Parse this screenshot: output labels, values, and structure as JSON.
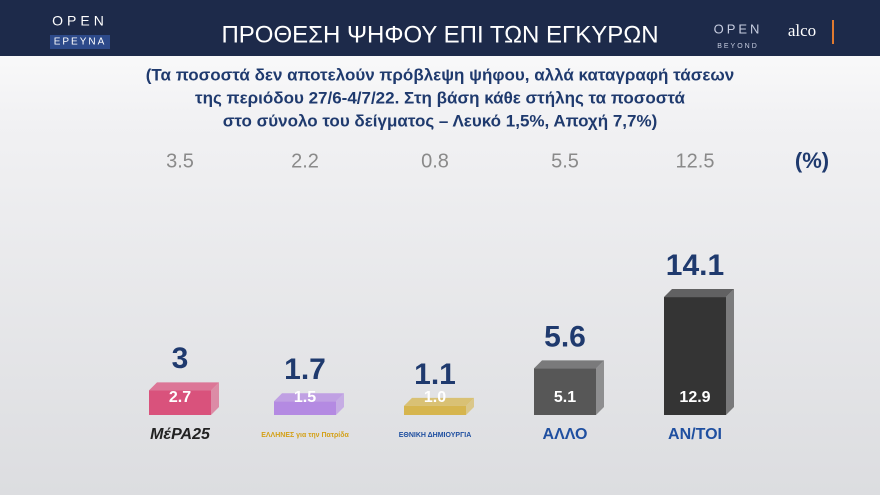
{
  "branding": {
    "left_logo": "OPEN",
    "left_logo_sub": "ΕΡΕΥΝΑ",
    "right_logo": "OPEN",
    "right_logo_sub": "BEYOND",
    "partner": "alco"
  },
  "chart_data": {
    "type": "bar",
    "title": "ΠΡΟΘΕΣΗ ΨΗΦΟΥ ΕΠΙ ΤΩΝ ΕΓΚΥΡΩΝ",
    "subtitle": [
      "(Τα ποσοστά δεν αποτελούν πρόβλεψη ψήφου, αλλά καταγραφή τάσεων",
      "της περιόδου 27/6-4/7/22. Στη βάση κάθε στήλης τα ποσοστά",
      "στο σύνολο του δείγματος – Λευκό 1,5%, Αποχή 7,7%)"
    ],
    "unit_label": "(%)",
    "categories": [
      "ΜέΡΑ25",
      "ΕΛΛΗΝΕΣ για την Πατρίδα",
      "ΕΘΝΙΚΗ ΔΗΜΙΟΥΡΓΙΑ",
      "ΑΛΛΟ",
      "ΑΝ/ΤΟΙ"
    ],
    "values": [
      2.7,
      1.5,
      1.0,
      5.1,
      12.9
    ],
    "value_labels": [
      "2.7",
      "1.5",
      "1.0",
      "5.1",
      "12.9"
    ],
    "headline_values": [
      3,
      1.7,
      1.1,
      5.6,
      14.1
    ],
    "previous_values": [
      3.5,
      2.2,
      0.8,
      5.5,
      12.5
    ],
    "colors": [
      "#d9527c",
      "#b48ae2",
      "#d6b54e",
      "#575757",
      "#343434"
    ],
    "ylim": [
      0,
      14
    ]
  }
}
